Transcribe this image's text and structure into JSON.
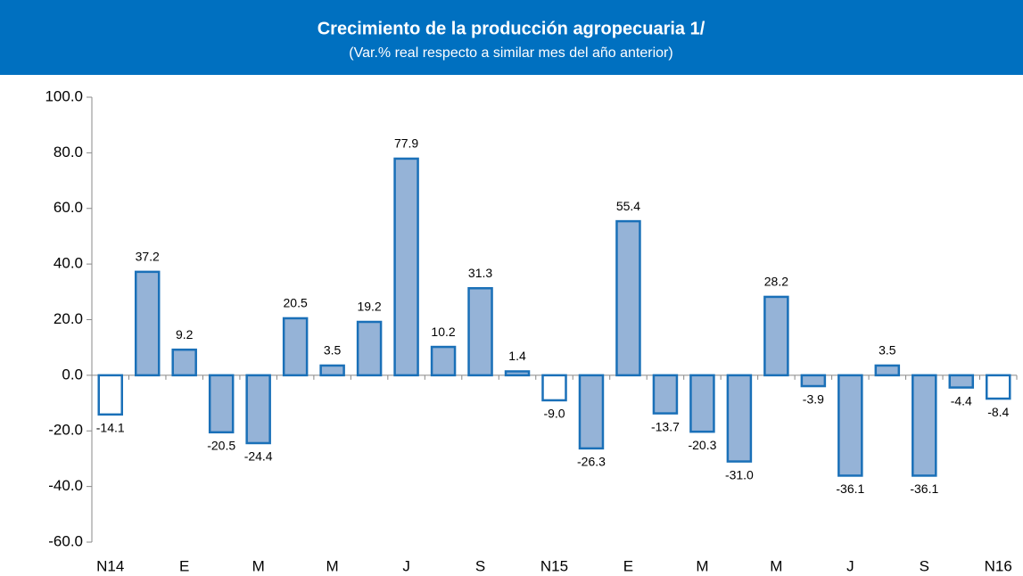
{
  "chart_data": {
    "type": "bar",
    "title": "Crecimiento de la producción agropecuaria 1/",
    "subtitle": "(Var.% real respecto a similar mes del año anterior)",
    "categories": [
      "N14",
      null,
      "E",
      null,
      "M",
      null,
      "M",
      null,
      "J",
      null,
      "S",
      null,
      "N15",
      null,
      "E",
      null,
      "M",
      null,
      "M",
      null,
      "J",
      null,
      "S",
      null,
      "N16"
    ],
    "values": [
      -14.1,
      37.2,
      9.2,
      -20.5,
      -24.4,
      20.5,
      3.5,
      19.2,
      77.9,
      10.2,
      31.3,
      1.4,
      -9.0,
      -26.3,
      55.4,
      -13.7,
      -20.3,
      -31.0,
      28.2,
      -3.9,
      -36.1,
      3.5,
      -36.1,
      -4.4,
      -8.4
    ],
    "value_labels": [
      "-14.1",
      "37.2",
      "9.2",
      "-20.5",
      "-24.4",
      "20.5",
      "3.5",
      "19.2",
      "77.9",
      "10.2",
      "31.3",
      "1.4",
      "-9.0",
      "-26.3",
      "55.4",
      "-13.7",
      "-20.3",
      "-31.0",
      "28.2",
      "-3.9",
      "-36.1",
      "3.5",
      "-36.1",
      "-4.4",
      "-8.4"
    ],
    "colors": [
      "#ffffff",
      "#95b3d7",
      "#95b3d7",
      "#95b3d7",
      "#95b3d7",
      "#95b3d7",
      "#95b3d7",
      "#95b3d7",
      "#95b3d7",
      "#95b3d7",
      "#95b3d7",
      "#95b3d7",
      "#ffffff",
      "#95b3d7",
      "#95b3d7",
      "#95b3d7",
      "#95b3d7",
      "#95b3d7",
      "#95b3d7",
      "#95b3d7",
      "#95b3d7",
      "#95b3d7",
      "#95b3d7",
      "#95b3d7",
      "#ffffff"
    ],
    "edge_color": "#1a70b8",
    "ylim": [
      -60,
      100
    ],
    "yticks": [
      {
        "value": -60,
        "label": "-60.0"
      },
      {
        "value": -40,
        "label": "-40.0"
      },
      {
        "value": -20,
        "label": "-20.0"
      },
      {
        "value": 0,
        "label": "0.0"
      },
      {
        "value": 20,
        "label": "20.0"
      },
      {
        "value": 40,
        "label": "40.0"
      },
      {
        "value": 60,
        "label": "60.0"
      },
      {
        "value": 80,
        "label": "80.0"
      },
      {
        "value": 100,
        "label": "100.0"
      }
    ],
    "grid": false
  }
}
